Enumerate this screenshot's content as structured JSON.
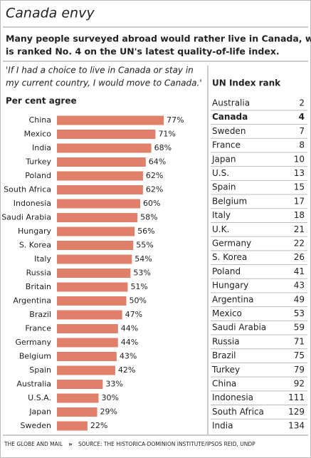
{
  "title": "Canada envy",
  "subtitle": [
    "Many people surveyed abroad would rather live in Canada, which",
    "is ranked No. 4 on the UN's latest quality-of-life index."
  ],
  "quote": [
    "'If I had a choice to live in Canada or stay in",
    "my current country, I would move to Canada.'"
  ],
  "chart_data": {
    "type": "bar",
    "orientation": "horizontal",
    "title": "Per cent agree",
    "categories": [
      "China",
      "Mexico",
      "India",
      "Turkey",
      "Poland",
      "South Africa",
      "Indonesia",
      "Saudi Arabia",
      "Hungary",
      "S. Korea",
      "Italy",
      "Russia",
      "Britain",
      "Argentina",
      "Brazil",
      "France",
      "Germany",
      "Belgium",
      "Spain",
      "Australia",
      "U.S.A.",
      "Japan",
      "Sweden"
    ],
    "values": [
      77,
      71,
      68,
      64,
      62,
      62,
      60,
      58,
      56,
      55,
      54,
      53,
      51,
      50,
      47,
      44,
      44,
      43,
      42,
      33,
      30,
      29,
      22
    ],
    "value_labels": [
      "77%",
      "71%",
      "68%",
      "64%",
      "62%",
      "62%",
      "60%",
      "58%",
      "56%",
      "55%",
      "54%",
      "53%",
      "51%",
      "50%",
      "47%",
      "44%",
      "44%",
      "43%",
      "42%",
      "33%",
      "30%",
      "29%",
      "22%"
    ],
    "color": "#e0806a"
  },
  "table": {
    "title": "UN Index rank",
    "highlight": 1,
    "rows": [
      [
        "Australia",
        2
      ],
      [
        "Canada",
        4
      ],
      [
        "Sweden",
        7
      ],
      [
        "France",
        8
      ],
      [
        "Japan",
        10
      ],
      [
        "U.S.",
        13
      ],
      [
        "Spain",
        15
      ],
      [
        "Belgium",
        17
      ],
      [
        "Italy",
        18
      ],
      [
        "U.K.",
        21
      ],
      [
        "Germany",
        22
      ],
      [
        "S. Korea",
        26
      ],
      [
        "Poland",
        41
      ],
      [
        "Hungary",
        43
      ],
      [
        "Argentina",
        49
      ],
      [
        "Mexico",
        53
      ],
      [
        "Saudi Arabia",
        59
      ],
      [
        "Russia",
        71
      ],
      [
        "Brazil",
        75
      ],
      [
        "Turkey",
        79
      ],
      [
        "China",
        92
      ],
      [
        "Indonesia",
        111
      ],
      [
        "South Africa",
        129
      ],
      [
        "India",
        134
      ]
    ]
  },
  "footer": {
    "publisher": "THE GLOBE AND MAIL",
    "separator": "»",
    "source": "SOURCE: THE HISTORICA-DOMINION INSTITUTE/IPSOS REID, UNDP"
  }
}
